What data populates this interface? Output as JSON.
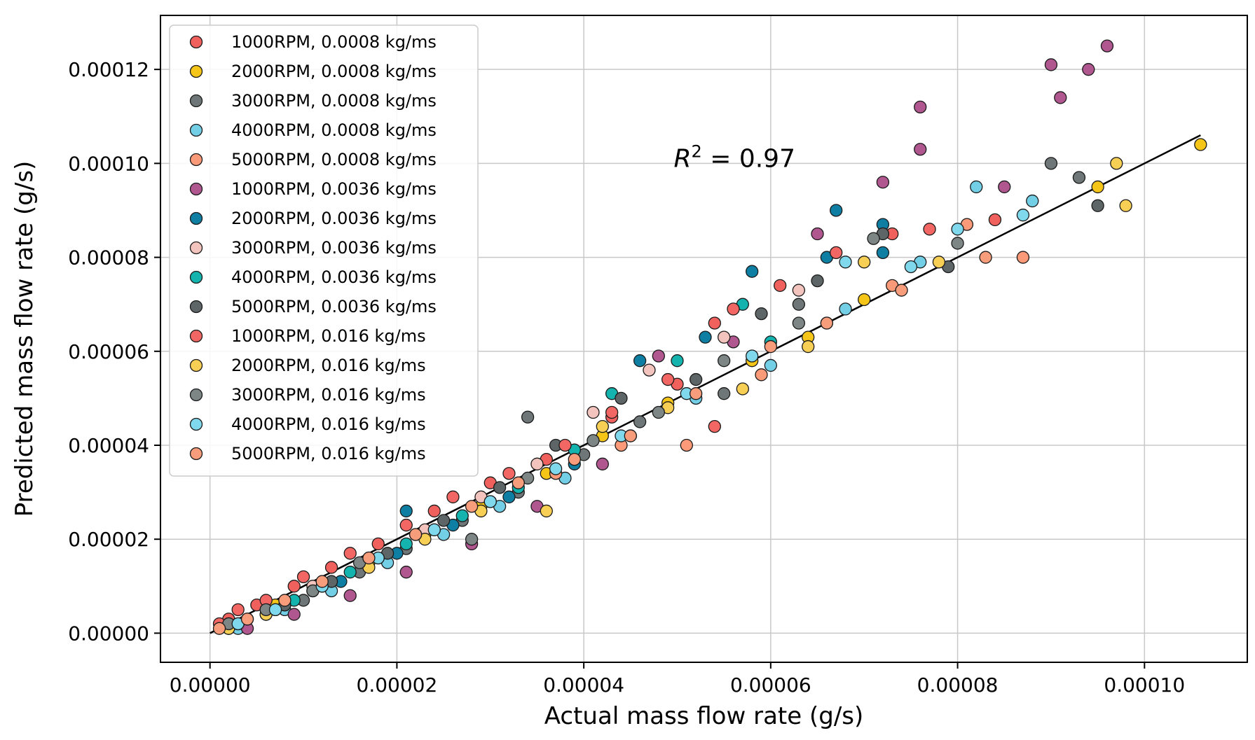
{
  "chart_data": {
    "type": "scatter",
    "title": "",
    "xlabel": "Actual mass flow rate (g/s)",
    "ylabel": "Predicted mass flow rate (g/s)",
    "xlim": [
      -5.3e-06,
      0.000111
    ],
    "ylim": [
      -6.2e-06,
      0.0001315
    ],
    "x_ticks": [
      "0.00000",
      "0.00002",
      "0.00004",
      "0.00006",
      "0.00008",
      "0.00010"
    ],
    "y_ticks": [
      "0.00000",
      "0.00002",
      "0.00004",
      "0.00006",
      "0.00008",
      "0.00010",
      "0.00012"
    ],
    "x_tick_values": [
      0,
      2e-05,
      4e-05,
      6e-05,
      8e-05,
      0.0001
    ],
    "y_tick_values": [
      0,
      2e-05,
      4e-05,
      6e-05,
      8e-05,
      0.0001,
      0.00012
    ],
    "grid": true,
    "legend_position": "upper-left",
    "annotation": {
      "var": "R",
      "sup": "2",
      "rest": " = 0.97",
      "x": 5e-05,
      "y": 0.000101
    },
    "fit_line": {
      "x": [
        0,
        0.000106
      ],
      "y": [
        0,
        0.000106
      ]
    },
    "series": [
      {
        "name": "1000RPM, 0.0008 kg/ms",
        "color": "#f0605d",
        "points": [
          [
            2e-06,
            3e-06
          ],
          [
            5e-06,
            6e-06
          ],
          [
            9e-06,
            1e-05
          ],
          [
            1.3e-05,
            1.4e-05
          ],
          [
            1.8e-05,
            1.9e-05
          ],
          [
            2.4e-05,
            2.6e-05
          ],
          [
            3e-05,
            3.2e-05
          ],
          [
            3.6e-05,
            3.7e-05
          ],
          [
            4.3e-05,
            4.6e-05
          ],
          [
            5e-05,
            5.3e-05
          ],
          [
            5.4e-05,
            6.6e-05
          ],
          [
            6.1e-05,
            7.4e-05
          ],
          [
            7.3e-05,
            8.5e-05
          ],
          [
            8.4e-05,
            8.8e-05
          ]
        ]
      },
      {
        "name": "2000RPM, 0.0008 kg/ms",
        "color": "#f5c518",
        "points": [
          [
            3e-06,
            2e-06
          ],
          [
            7e-06,
            6e-06
          ],
          [
            1.2e-05,
            1e-05
          ],
          [
            1.7e-05,
            1.5e-05
          ],
          [
            2.3e-05,
            2.1e-05
          ],
          [
            2.9e-05,
            2.7e-05
          ],
          [
            3.6e-05,
            3.4e-05
          ],
          [
            4.2e-05,
            4.2e-05
          ],
          [
            4.9e-05,
            4.9e-05
          ],
          [
            5.8e-05,
            5.8e-05
          ],
          [
            6.4e-05,
            6.3e-05
          ],
          [
            7e-05,
            7.1e-05
          ],
          [
            9.5e-05,
            9.5e-05
          ],
          [
            0.000106,
            0.000104
          ]
        ]
      },
      {
        "name": "3000RPM, 0.0008 kg/ms",
        "color": "#6e7677",
        "points": [
          [
            2e-06,
            1e-06
          ],
          [
            6e-06,
            4e-06
          ],
          [
            1e-05,
            7e-06
          ],
          [
            1.6e-05,
            1.3e-05
          ],
          [
            2.1e-05,
            1.8e-05
          ],
          [
            2.7e-05,
            2.4e-05
          ],
          [
            3.3e-05,
            3e-05
          ],
          [
            3.4e-05,
            4.6e-05
          ],
          [
            4e-05,
            3.8e-05
          ],
          [
            4.6e-05,
            4.5e-05
          ],
          [
            5.5e-05,
            5.1e-05
          ],
          [
            6.3e-05,
            7e-05
          ],
          [
            9e-05,
            0.0001
          ],
          [
            9.3e-05,
            9.7e-05
          ]
        ]
      },
      {
        "name": "4000RPM, 0.0008 kg/ms",
        "color": "#72cfe6",
        "points": [
          [
            3e-06,
            1e-06
          ],
          [
            8e-06,
            5e-06
          ],
          [
            1.3e-05,
            9e-06
          ],
          [
            1.9e-05,
            1.5e-05
          ],
          [
            2.5e-05,
            2.1e-05
          ],
          [
            3.1e-05,
            2.7e-05
          ],
          [
            3.8e-05,
            3.3e-05
          ],
          [
            4.5e-05,
            4.2e-05
          ],
          [
            5.2e-05,
            5e-05
          ],
          [
            6e-05,
            5.7e-05
          ],
          [
            6.8e-05,
            6.9e-05
          ],
          [
            7.6e-05,
            7.9e-05
          ],
          [
            8.2e-05,
            9.5e-05
          ],
          [
            8.8e-05,
            9.2e-05
          ]
        ]
      },
      {
        "name": "5000RPM, 0.0008 kg/ms",
        "color": "#fa9a78",
        "points": [
          [
            2e-06,
            2e-06
          ],
          [
            7e-06,
            5e-06
          ],
          [
            1.2e-05,
            1e-05
          ],
          [
            1.8e-05,
            1.6e-05
          ],
          [
            2.4e-05,
            2.2e-05
          ],
          [
            3e-05,
            2.8e-05
          ],
          [
            3.7e-05,
            3.4e-05
          ],
          [
            4.4e-05,
            4e-05
          ],
          [
            5.1e-05,
            4e-05
          ],
          [
            5.9e-05,
            5.5e-05
          ],
          [
            6.6e-05,
            6.6e-05
          ],
          [
            7.3e-05,
            7.4e-05
          ],
          [
            8.1e-05,
            8.7e-05
          ],
          [
            8.7e-05,
            8e-05
          ]
        ]
      },
      {
        "name": "1000RPM, 0.0036 kg/ms",
        "color": "#b0578f",
        "points": [
          [
            4e-06,
            1e-06
          ],
          [
            9e-06,
            4e-06
          ],
          [
            1.5e-05,
            8e-06
          ],
          [
            2.1e-05,
            1.3e-05
          ],
          [
            2.8e-05,
            1.9e-05
          ],
          [
            3.5e-05,
            2.7e-05
          ],
          [
            4.2e-05,
            3.6e-05
          ],
          [
            4.8e-05,
            5.9e-05
          ],
          [
            5.6e-05,
            6.2e-05
          ],
          [
            6.5e-05,
            8.5e-05
          ],
          [
            7.2e-05,
            9.6e-05
          ],
          [
            7.6e-05,
            0.000112
          ],
          [
            7.6e-05,
            0.000103
          ],
          [
            8.5e-05,
            9.5e-05
          ],
          [
            9e-05,
            0.000121
          ],
          [
            9.1e-05,
            0.000114
          ],
          [
            9.4e-05,
            0.00012
          ],
          [
            9.6e-05,
            0.000125
          ]
        ]
      },
      {
        "name": "2000RPM, 0.0036 kg/ms",
        "color": "#0e7fa3",
        "points": [
          [
            3e-06,
            2e-06
          ],
          [
            8e-06,
            6e-06
          ],
          [
            1.4e-05,
            1.1e-05
          ],
          [
            2e-05,
            1.7e-05
          ],
          [
            2.1e-05,
            2.6e-05
          ],
          [
            2.6e-05,
            2.3e-05
          ],
          [
            3.2e-05,
            2.9e-05
          ],
          [
            3.9e-05,
            3.6e-05
          ],
          [
            4.6e-05,
            5.8e-05
          ],
          [
            5.3e-05,
            6.3e-05
          ],
          [
            5.8e-05,
            7.7e-05
          ],
          [
            6.6e-05,
            8e-05
          ],
          [
            6.7e-05,
            9e-05
          ],
          [
            7.2e-05,
            8.7e-05
          ],
          [
            7.2e-05,
            8.1e-05
          ]
        ]
      },
      {
        "name": "3000RPM, 0.0036 kg/ms",
        "color": "#f2c4bd",
        "points": [
          [
            2e-06,
            2e-06
          ],
          [
            6e-06,
            5e-06
          ],
          [
            1.1e-05,
            1e-05
          ],
          [
            1.7e-05,
            1.6e-05
          ],
          [
            2.3e-05,
            2.2e-05
          ],
          [
            2.9e-05,
            2.9e-05
          ],
          [
            3.5e-05,
            3.6e-05
          ],
          [
            4.1e-05,
            4.7e-05
          ],
          [
            4.7e-05,
            5.6e-05
          ],
          [
            5.5e-05,
            6.3e-05
          ],
          [
            6.3e-05,
            7.3e-05
          ]
        ]
      },
      {
        "name": "4000RPM, 0.0036 kg/ms",
        "color": "#14b3ad",
        "points": [
          [
            4e-06,
            3e-06
          ],
          [
            9e-06,
            7e-06
          ],
          [
            1.5e-05,
            1.3e-05
          ],
          [
            2.1e-05,
            1.9e-05
          ],
          [
            2.7e-05,
            2.5e-05
          ],
          [
            3.3e-05,
            3.1e-05
          ],
          [
            3.9e-05,
            3.9e-05
          ],
          [
            4.3e-05,
            5.1e-05
          ],
          [
            5e-05,
            5.8e-05
          ],
          [
            5.7e-05,
            7e-05
          ],
          [
            6e-05,
            6.2e-05
          ]
        ]
      },
      {
        "name": "5000RPM, 0.0036 kg/ms",
        "color": "#5d6566",
        "points": [
          [
            3e-06,
            2e-06
          ],
          [
            8e-06,
            6e-06
          ],
          [
            1.3e-05,
            1.1e-05
          ],
          [
            1.9e-05,
            1.7e-05
          ],
          [
            2.5e-05,
            2.4e-05
          ],
          [
            3.1e-05,
            3.1e-05
          ],
          [
            3.7e-05,
            4e-05
          ],
          [
            4.4e-05,
            5e-05
          ],
          [
            5.2e-05,
            5.4e-05
          ],
          [
            5.9e-05,
            6.8e-05
          ],
          [
            6.5e-05,
            7.5e-05
          ],
          [
            7.2e-05,
            8.5e-05
          ],
          [
            7.9e-05,
            7.8e-05
          ],
          [
            9.5e-05,
            9.1e-05
          ]
        ]
      },
      {
        "name": "1000RPM, 0.016 kg/ms",
        "color": "#f26763",
        "points": [
          [
            1e-06,
            2e-06
          ],
          [
            3e-06,
            5e-06
          ],
          [
            6e-06,
            7e-06
          ],
          [
            1e-05,
            1.2e-05
          ],
          [
            1.5e-05,
            1.7e-05
          ],
          [
            2.1e-05,
            2.3e-05
          ],
          [
            2.6e-05,
            2.9e-05
          ],
          [
            3.2e-05,
            3.4e-05
          ],
          [
            3.8e-05,
            4e-05
          ],
          [
            4.3e-05,
            4.7e-05
          ],
          [
            4.9e-05,
            5.4e-05
          ],
          [
            5.4e-05,
            4.4e-05
          ],
          [
            5.6e-05,
            6.9e-05
          ],
          [
            6.7e-05,
            8.1e-05
          ],
          [
            7.7e-05,
            8.6e-05
          ]
        ]
      },
      {
        "name": "2000RPM, 0.016 kg/ms",
        "color": "#f7cf55",
        "points": [
          [
            2e-06,
            1e-06
          ],
          [
            6e-06,
            4e-06
          ],
          [
            1.1e-05,
            9e-06
          ],
          [
            1.7e-05,
            1.4e-05
          ],
          [
            2.3e-05,
            2e-05
          ],
          [
            2.9e-05,
            2.6e-05
          ],
          [
            3.6e-05,
            2.6e-05
          ],
          [
            4.2e-05,
            4.4e-05
          ],
          [
            4.9e-05,
            4.8e-05
          ],
          [
            5.7e-05,
            5.2e-05
          ],
          [
            6.4e-05,
            6.1e-05
          ],
          [
            7e-05,
            7.9e-05
          ],
          [
            7.8e-05,
            7.9e-05
          ],
          [
            9.7e-05,
            0.0001
          ],
          [
            9.8e-05,
            9.1e-05
          ]
        ]
      },
      {
        "name": "3000RPM, 0.016 kg/ms",
        "color": "#7d8585",
        "points": [
          [
            2e-06,
            2e-06
          ],
          [
            6e-06,
            5e-06
          ],
          [
            1.1e-05,
            9e-06
          ],
          [
            1.6e-05,
            1.5e-05
          ],
          [
            2.2e-05,
            2.1e-05
          ],
          [
            2.8e-05,
            2e-05
          ],
          [
            3.4e-05,
            3.3e-05
          ],
          [
            4.1e-05,
            4.1e-05
          ],
          [
            4.8e-05,
            4.7e-05
          ],
          [
            5.5e-05,
            5.8e-05
          ],
          [
            6.3e-05,
            6.6e-05
          ],
          [
            7.1e-05,
            8.4e-05
          ],
          [
            8e-05,
            8.3e-05
          ]
        ]
      },
      {
        "name": "4000RPM, 0.016 kg/ms",
        "color": "#80d8ed",
        "points": [
          [
            3e-06,
            2e-06
          ],
          [
            7e-06,
            5e-06
          ],
          [
            1.2e-05,
            1e-05
          ],
          [
            1.8e-05,
            1.6e-05
          ],
          [
            2.4e-05,
            2.2e-05
          ],
          [
            3e-05,
            2.8e-05
          ],
          [
            3.7e-05,
            3.5e-05
          ],
          [
            4.4e-05,
            4.2e-05
          ],
          [
            5.1e-05,
            5.1e-05
          ],
          [
            5.8e-05,
            5.9e-05
          ],
          [
            6.8e-05,
            7.9e-05
          ],
          [
            7.5e-05,
            7.8e-05
          ],
          [
            8e-05,
            8.6e-05
          ],
          [
            8.7e-05,
            8.9e-05
          ]
        ]
      },
      {
        "name": "5000RPM, 0.016 kg/ms",
        "color": "#f79d7c",
        "points": [
          [
            1e-06,
            1e-06
          ],
          [
            4e-06,
            3e-06
          ],
          [
            8e-06,
            7e-06
          ],
          [
            1.2e-05,
            1.1e-05
          ],
          [
            1.7e-05,
            1.6e-05
          ],
          [
            2.2e-05,
            2.1e-05
          ],
          [
            2.8e-05,
            2.7e-05
          ],
          [
            3.3e-05,
            3.2e-05
          ],
          [
            3.9e-05,
            3.7e-05
          ],
          [
            4.5e-05,
            4.2e-05
          ],
          [
            5.2e-05,
            5.1e-05
          ],
          [
            6e-05,
            6.1e-05
          ],
          [
            6.6e-05,
            6.6e-05
          ],
          [
            7.4e-05,
            7.3e-05
          ],
          [
            8.3e-05,
            8e-05
          ]
        ]
      }
    ]
  }
}
